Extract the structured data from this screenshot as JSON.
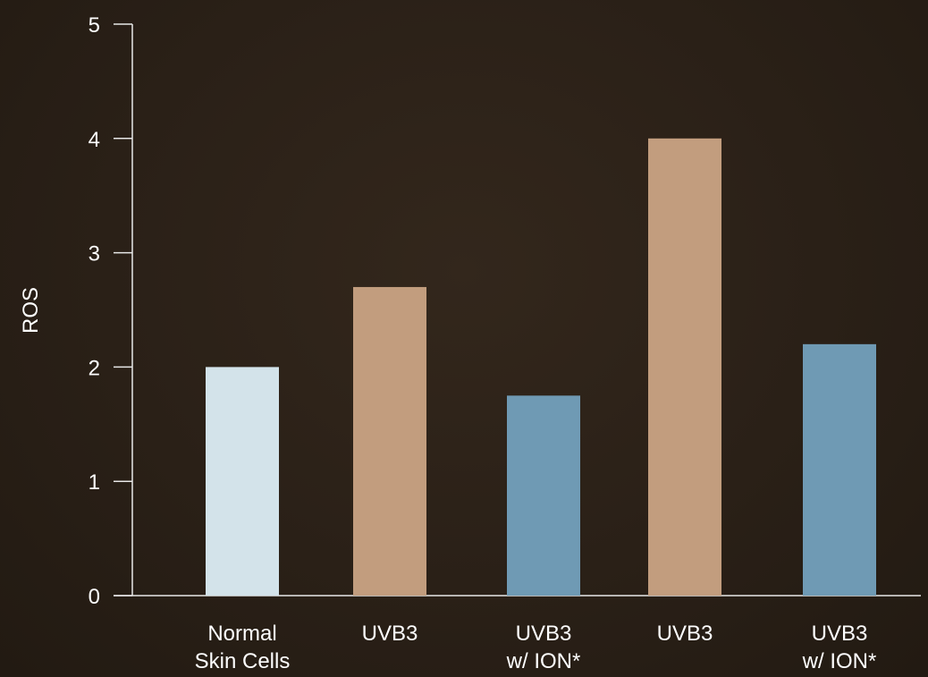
{
  "chart_data": {
    "type": "bar",
    "categories": [
      [
        "Normal",
        "Skin Cells"
      ],
      [
        "UVB3"
      ],
      [
        "UVB3",
        "w/ ION*"
      ],
      [
        "UVB3"
      ],
      [
        "UVB3",
        "w/ ION*"
      ]
    ],
    "values": [
      2.0,
      2.7,
      1.75,
      4.0,
      2.2
    ],
    "bar_colors": [
      "#d3e3ea",
      "#c29d7e",
      "#6f9ab4",
      "#c29d7e",
      "#6f9ab4"
    ],
    "ylabel": "ROS",
    "ylim": [
      0,
      5
    ],
    "yticks": [
      "0",
      "1",
      "2",
      "3",
      "4",
      "5"
    ],
    "grid": false
  }
}
